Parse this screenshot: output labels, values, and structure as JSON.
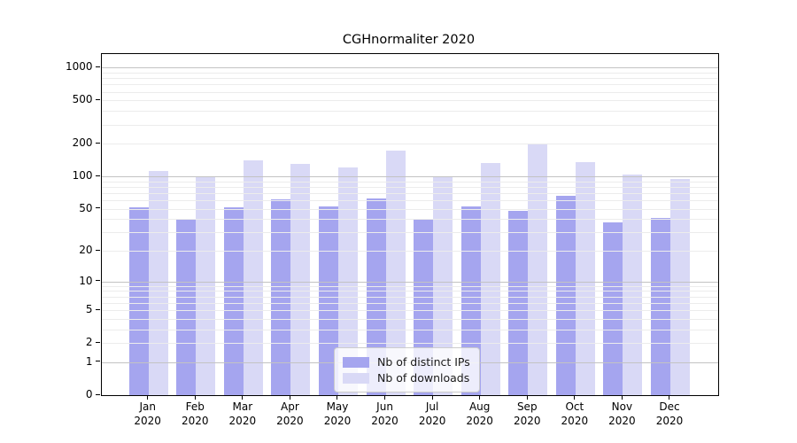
{
  "chart_data": {
    "type": "bar",
    "title": "CGHnormaliter 2020",
    "categories": [
      "Jan 2020",
      "Feb 2020",
      "Mar 2020",
      "Apr 2020",
      "May 2020",
      "Jun 2020",
      "Jul 2020",
      "Aug 2020",
      "Sep 2020",
      "Oct 2020",
      "Nov 2020",
      "Dec 2020"
    ],
    "series": [
      {
        "name": "Nb of distinct IPs",
        "color": "#a5a5ef",
        "values": [
          52,
          40,
          52,
          61,
          53,
          62,
          40,
          53,
          48,
          66,
          37,
          41
        ]
      },
      {
        "name": "Nb of downloads",
        "color": "#d9d9f6",
        "values": [
          113,
          101,
          141,
          131,
          121,
          172,
          98,
          133,
          196,
          135,
          104,
          95
        ]
      }
    ],
    "xlabel": "",
    "ylabel": "",
    "yscale": "log1p",
    "yticks": [
      0,
      1,
      2,
      5,
      10,
      20,
      50,
      100,
      200,
      500,
      1000
    ],
    "ylim": [
      0,
      1100
    ],
    "grid": "horizontal; dark lines at 1,10,100,1000; light minor lines at 2-9 per decade; drawn above bars",
    "legend_position": "lower center inside plot"
  },
  "colors": {
    "bar_distinct_ips": "#a5a5ef",
    "bar_downloads": "#d9d9f6",
    "grid_major": "#c3c3c3",
    "grid_minor": "#ececec",
    "spine": "#000000",
    "background": "#ffffff"
  }
}
